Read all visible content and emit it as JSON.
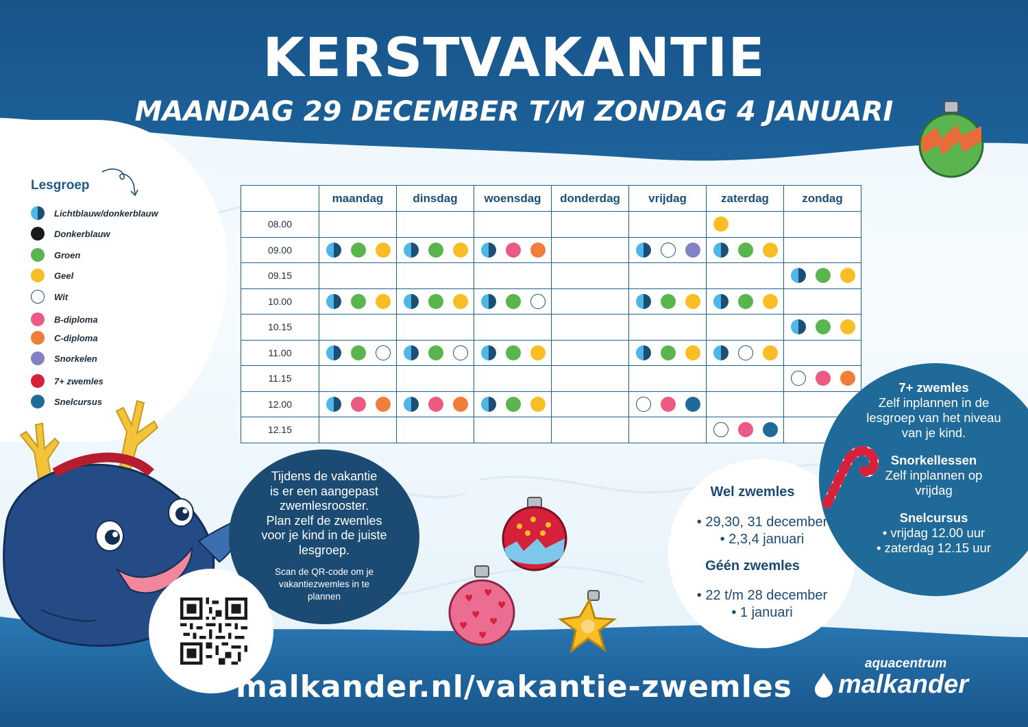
{
  "header": {
    "title": "KERSTVAKANTIE",
    "subtitle": "MAANDAG 29 DECEMBER T/M ZONDAG 4 JANUARI"
  },
  "legend": {
    "title": "Lesgroep",
    "items": [
      {
        "label": "Lichtblauw/donkerblauw",
        "color": "half"
      },
      {
        "label": "Donkerblauw",
        "color": "#1a1a1a"
      },
      {
        "label": "Groen",
        "color": "#5bb54e"
      },
      {
        "label": "Geel",
        "color": "#f9bd25"
      },
      {
        "label": "Wit",
        "color": "white"
      },
      {
        "label": "B-diploma",
        "color": "#ea5a83"
      },
      {
        "label": "C-diploma",
        "color": "#ef7e3b"
      },
      {
        "label": "Snorkelen",
        "color": "#8281c4"
      },
      {
        "label": "7+ zwemles",
        "color": "#d5213a"
      },
      {
        "label": "Snelcursus",
        "color": "#1e6a99"
      }
    ]
  },
  "schedule": {
    "days": [
      "maandag",
      "dinsdag",
      "woensdag",
      "donderdag",
      "vrijdag",
      "zaterdag",
      "zondag"
    ],
    "rows": [
      {
        "time": "08.00",
        "cells": [
          [],
          [],
          [],
          [],
          [],
          [
            "Y"
          ],
          []
        ]
      },
      {
        "time": "09.00",
        "cells": [
          [
            "H",
            "G",
            "Y"
          ],
          [
            "H",
            "G",
            "Y"
          ],
          [
            "H",
            "B",
            "C"
          ],
          [],
          [
            "H",
            "W",
            "S"
          ],
          [
            "H",
            "G",
            "Y"
          ],
          []
        ]
      },
      {
        "time": "09.15",
        "cells": [
          [],
          [],
          [],
          [],
          [],
          [],
          [
            "H",
            "G",
            "Y"
          ]
        ]
      },
      {
        "time": "10.00",
        "cells": [
          [
            "H",
            "G",
            "Y"
          ],
          [
            "H",
            "G",
            "Y"
          ],
          [
            "H",
            "G",
            "W"
          ],
          [],
          [
            "H",
            "G",
            "Y"
          ],
          [
            "H",
            "G",
            "Y"
          ],
          []
        ]
      },
      {
        "time": "10.15",
        "cells": [
          [],
          [],
          [],
          [],
          [],
          [],
          [
            "H",
            "G",
            "Y"
          ]
        ]
      },
      {
        "time": "11.00",
        "cells": [
          [
            "H",
            "G",
            "W"
          ],
          [
            "H",
            "G",
            "W"
          ],
          [
            "H",
            "G",
            "Y"
          ],
          [],
          [
            "H",
            "G",
            "Y"
          ],
          [
            "H",
            "W",
            "Y"
          ],
          []
        ]
      },
      {
        "time": "11.15",
        "cells": [
          [],
          [],
          [],
          [],
          [],
          [],
          [
            "W",
            "B",
            "C"
          ]
        ]
      },
      {
        "time": "12.00",
        "cells": [
          [
            "H",
            "B",
            "C"
          ],
          [
            "H",
            "B",
            "C"
          ],
          [
            "H",
            "G",
            "Y"
          ],
          [],
          [
            "W",
            "B",
            "N"
          ],
          [],
          []
        ]
      },
      {
        "time": "12.15",
        "cells": [
          [],
          [],
          [],
          [],
          [],
          [
            "W",
            "B",
            "N"
          ],
          []
        ]
      }
    ]
  },
  "dot_colors": {
    "H": "half",
    "G": "#5bb54e",
    "Y": "#f9bd25",
    "W": "white",
    "B": "#ea5a83",
    "C": "#ef7e3b",
    "S": "#8281c4",
    "N": "#1e6a99"
  },
  "vacation_bubble": {
    "lines": [
      "Tijdens de vakantie",
      "is er een aangepast",
      "zwemlesrooster.",
      "Plan zelf de zwemles",
      "voor je kind in de juiste",
      "lesgroep."
    ],
    "scan_lines": [
      "Scan de QR-code om je",
      "vakantiezwemles in te",
      "plannen"
    ]
  },
  "dates_bubble": {
    "yes_title": "Wel zwemles",
    "yes_items": [
      "• 29,30, 31 december",
      "• 2,3,4 januari"
    ],
    "no_title": "Géén zwemles",
    "no_items": [
      "• 22 t/m 28 december",
      "• 1 januari"
    ]
  },
  "info_bubble": {
    "s1_title": "7+ zwemles",
    "s1_lines": [
      "Zelf inplannen in de",
      "lesgroep van het niveau",
      "van je kind."
    ],
    "s2_title": "Snorkellessen",
    "s2_lines": [
      "Zelf inplannen op",
      "vrijdag"
    ],
    "s3_title": "Snelcursus",
    "s3_lines": [
      "• vrijdag 12.00 uur",
      "• zaterdag 12.15 uur"
    ]
  },
  "footer": {
    "url": "malkander.nl/vakantie-zwemles",
    "brand_small": "aquacentrum",
    "brand_big": "malkander"
  },
  "colors": {
    "header_blue": "#1b5b91",
    "footer_blue": "#1a5f97",
    "dark_navy": "#1b4a72"
  }
}
